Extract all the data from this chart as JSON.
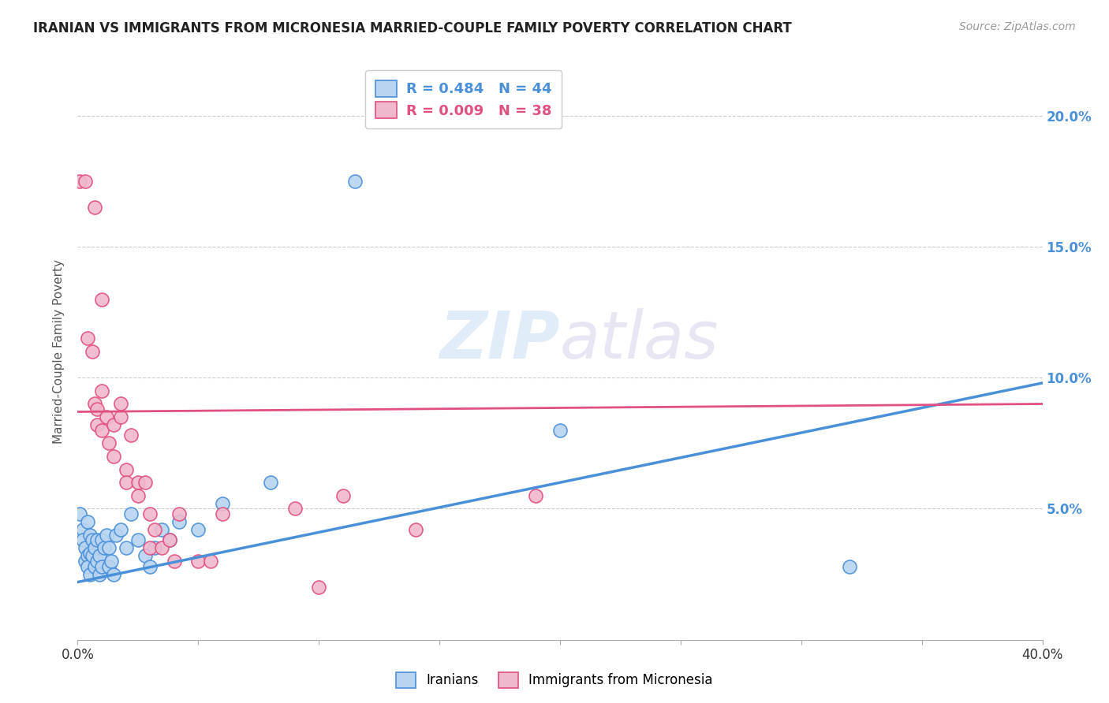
{
  "title": "IRANIAN VS IMMIGRANTS FROM MICRONESIA MARRIED-COUPLE FAMILY POVERTY CORRELATION CHART",
  "source": "Source: ZipAtlas.com",
  "ylabel": "Married-Couple Family Poverty",
  "legend_entry1": "R = 0.484   N = 44",
  "legend_entry2": "R = 0.009   N = 38",
  "legend_label1": "Iranians",
  "legend_label2": "Immigrants from Micronesia",
  "watermark_zip": "ZIP",
  "watermark_atlas": "atlas",
  "blue_color": "#b8d4f0",
  "pink_color": "#f0b8cc",
  "blue_line_color": "#4a90d9",
  "pink_line_color": "#e05080",
  "blue_scatter": [
    [
      0.001,
      0.048
    ],
    [
      0.002,
      0.042
    ],
    [
      0.002,
      0.038
    ],
    [
      0.003,
      0.035
    ],
    [
      0.003,
      0.03
    ],
    [
      0.004,
      0.032
    ],
    [
      0.004,
      0.045
    ],
    [
      0.004,
      0.028
    ],
    [
      0.005,
      0.033
    ],
    [
      0.005,
      0.04
    ],
    [
      0.005,
      0.025
    ],
    [
      0.006,
      0.032
    ],
    [
      0.006,
      0.038
    ],
    [
      0.007,
      0.028
    ],
    [
      0.007,
      0.035
    ],
    [
      0.008,
      0.03
    ],
    [
      0.008,
      0.038
    ],
    [
      0.009,
      0.025
    ],
    [
      0.009,
      0.032
    ],
    [
      0.01,
      0.028
    ],
    [
      0.01,
      0.038
    ],
    [
      0.011,
      0.035
    ],
    [
      0.012,
      0.04
    ],
    [
      0.013,
      0.028
    ],
    [
      0.013,
      0.035
    ],
    [
      0.014,
      0.03
    ],
    [
      0.015,
      0.025
    ],
    [
      0.016,
      0.04
    ],
    [
      0.018,
      0.042
    ],
    [
      0.02,
      0.035
    ],
    [
      0.022,
      0.048
    ],
    [
      0.025,
      0.038
    ],
    [
      0.028,
      0.032
    ],
    [
      0.03,
      0.028
    ],
    [
      0.032,
      0.035
    ],
    [
      0.035,
      0.042
    ],
    [
      0.038,
      0.038
    ],
    [
      0.042,
      0.045
    ],
    [
      0.05,
      0.042
    ],
    [
      0.06,
      0.052
    ],
    [
      0.08,
      0.06
    ],
    [
      0.115,
      0.175
    ],
    [
      0.2,
      0.08
    ],
    [
      0.32,
      0.028
    ]
  ],
  "pink_scatter": [
    [
      0.001,
      0.175
    ],
    [
      0.003,
      0.175
    ],
    [
      0.007,
      0.165
    ],
    [
      0.01,
      0.13
    ],
    [
      0.004,
      0.115
    ],
    [
      0.006,
      0.11
    ],
    [
      0.007,
      0.09
    ],
    [
      0.008,
      0.088
    ],
    [
      0.008,
      0.082
    ],
    [
      0.01,
      0.095
    ],
    [
      0.01,
      0.08
    ],
    [
      0.012,
      0.085
    ],
    [
      0.013,
      0.075
    ],
    [
      0.015,
      0.082
    ],
    [
      0.015,
      0.07
    ],
    [
      0.018,
      0.085
    ],
    [
      0.018,
      0.09
    ],
    [
      0.02,
      0.065
    ],
    [
      0.02,
      0.06
    ],
    [
      0.022,
      0.078
    ],
    [
      0.025,
      0.06
    ],
    [
      0.025,
      0.055
    ],
    [
      0.028,
      0.06
    ],
    [
      0.03,
      0.048
    ],
    [
      0.03,
      0.035
    ],
    [
      0.032,
      0.042
    ],
    [
      0.035,
      0.035
    ],
    [
      0.038,
      0.038
    ],
    [
      0.04,
      0.03
    ],
    [
      0.042,
      0.048
    ],
    [
      0.05,
      0.03
    ],
    [
      0.055,
      0.03
    ],
    [
      0.06,
      0.048
    ],
    [
      0.09,
      0.05
    ],
    [
      0.1,
      0.02
    ],
    [
      0.11,
      0.055
    ],
    [
      0.14,
      0.042
    ],
    [
      0.19,
      0.055
    ]
  ],
  "blue_trendline": [
    [
      0.0,
      0.022
    ],
    [
      0.4,
      0.098
    ]
  ],
  "pink_trendline": [
    [
      0.0,
      0.087
    ],
    [
      0.4,
      0.09
    ]
  ],
  "xlim": [
    0.0,
    0.4
  ],
  "ylim": [
    0.0,
    0.22
  ],
  "ytick_values": [
    0.05,
    0.1,
    0.15,
    0.2
  ],
  "xtick_only_ends": [
    0.0,
    0.4
  ],
  "xtick_minor": [
    0.05,
    0.1,
    0.15,
    0.2,
    0.25,
    0.3,
    0.35
  ]
}
